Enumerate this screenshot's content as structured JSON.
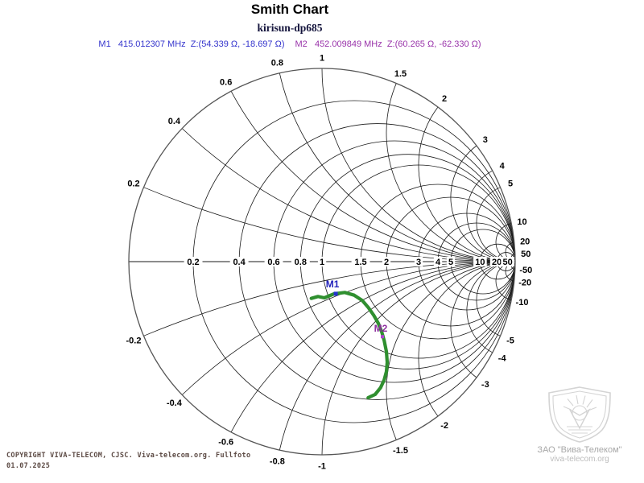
{
  "header": {
    "title": "Smith Chart",
    "subtitle": "kirisun-dp685",
    "markers": [
      {
        "text": "M1   415.012307 MHz  Z:(54.339 Ω, -18.697 Ω)",
        "color": "#3333cc"
      },
      {
        "text": "M2   452.009849 MHz  Z:(60.265 Ω, -62.330 Ω)",
        "color": "#9933aa"
      }
    ]
  },
  "chart_data": {
    "type": "smith",
    "title": "Smith Chart",
    "subtitle": "kirisun-dp685",
    "normalization_ohm": 50,
    "grid_color": "#1a1a1a",
    "outer_circle_color": "#555555",
    "resistance_circles": [
      0.2,
      0.4,
      0.6,
      0.8,
      1,
      1.5,
      2,
      3,
      4,
      5,
      10,
      20,
      50
    ],
    "reactance_arcs": [
      0.2,
      0.4,
      0.6,
      0.8,
      1,
      1.5,
      2,
      3,
      4,
      5,
      10,
      20,
      50
    ],
    "markers": [
      {
        "id": "M1",
        "label": "M1",
        "freq_mhz": "415.012307",
        "z_real_ohm": "54.339",
        "z_imag_ohm": "-18.697",
        "gamma": [
          0.0714,
          -0.1664
        ],
        "color": "#2222bb",
        "dot_color": "#2233cc",
        "dot_size": 5,
        "label_offset": [
          -4,
          -8
        ]
      },
      {
        "id": "M2",
        "label": "M2",
        "freq_mhz": "452.009849",
        "z_real_ohm": "60.265",
        "z_imag_ohm": "-62.330",
        "gamma": [
          0.3127,
          -0.3885
        ],
        "color": "#8c2d9e",
        "dot_color": "#aa44cc",
        "dot_size": 4,
        "label_offset": [
          -2,
          -6
        ]
      }
    ],
    "trace": {
      "name": "S11 sweep",
      "color": "#2f8f2f",
      "width": 4.2,
      "gamma_points": [
        [
          -0.0554,
          -0.1904
        ],
        [
          -0.0208,
          -0.1804
        ],
        [
          0.0125,
          -0.1875
        ],
        [
          0.0625,
          -0.1667
        ],
        [
          0.1179,
          -0.1596
        ],
        [
          0.1667,
          -0.1738
        ],
        [
          0.2083,
          -0.2013
        ],
        [
          0.2388,
          -0.2363
        ],
        [
          0.2679,
          -0.2779
        ],
        [
          0.2917,
          -0.3196
        ],
        [
          0.3096,
          -0.3654
        ],
        [
          0.3221,
          -0.4096
        ],
        [
          0.3333,
          -0.4654
        ],
        [
          0.3375,
          -0.5208
        ],
        [
          0.3333,
          -0.5696
        ],
        [
          0.3221,
          -0.6113
        ],
        [
          0.3029,
          -0.6529
        ],
        [
          0.275,
          -0.6875
        ],
        [
          0.2388,
          -0.7042
        ]
      ]
    }
  },
  "footer": {
    "copyright_line1": "COPYRIGHT VIVA-TELECOM, CJSC. Viva-telecom.org. Fullfoto",
    "copyright_line2": "01.07.2025",
    "color": "#5c4a44"
  },
  "watermark": {
    "company": "ЗАО \"Вива-Телеком\"",
    "website": "viva-telecom.org"
  }
}
